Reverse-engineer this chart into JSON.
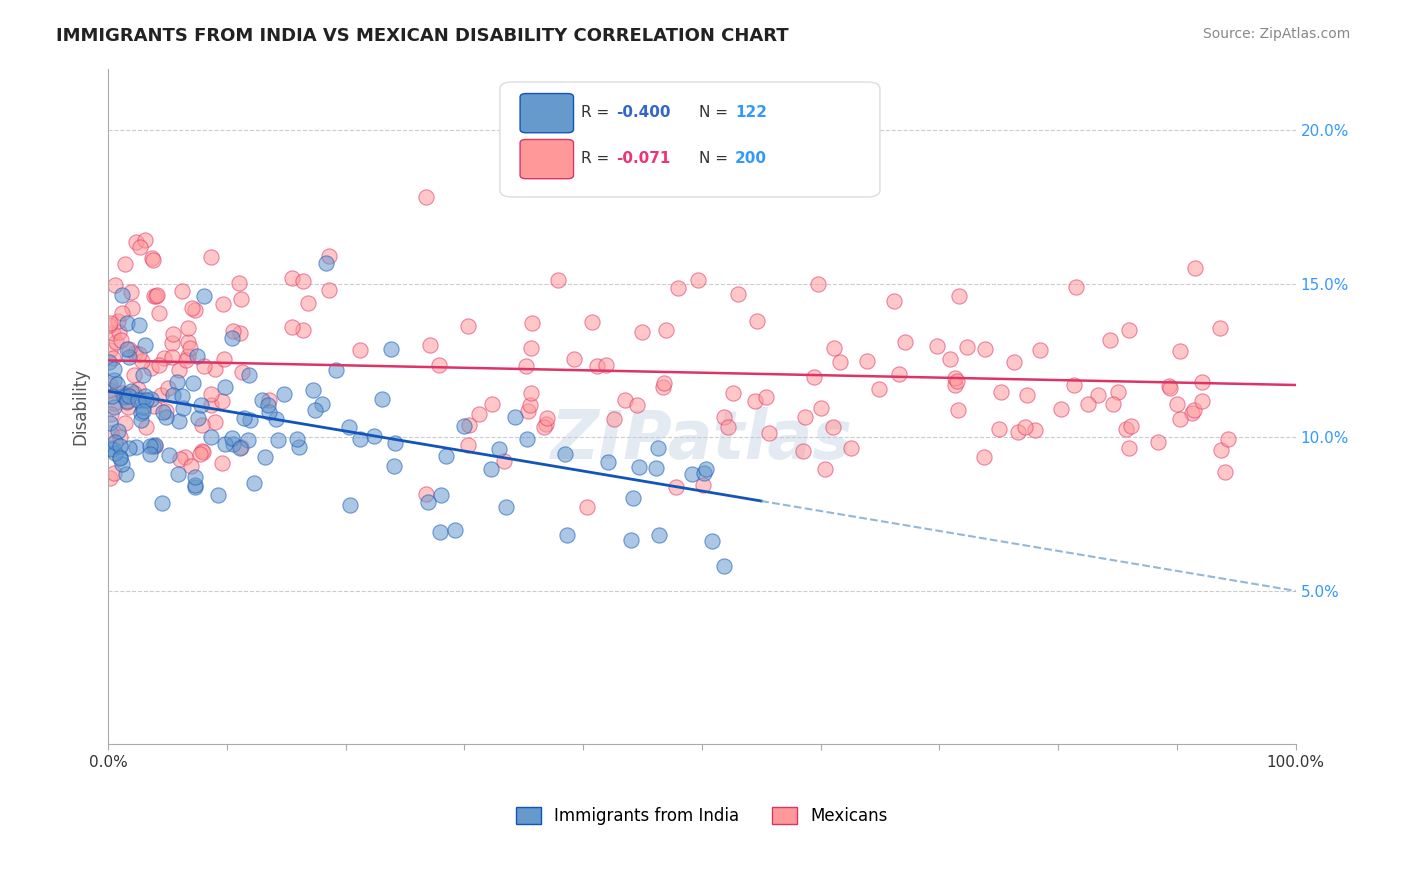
{
  "title": "IMMIGRANTS FROM INDIA VS MEXICAN DISABILITY CORRELATION CHART",
  "source_text": "Source: ZipAtlas.com",
  "ylabel": "Disability",
  "xlim": [
    0,
    100
  ],
  "ylim": [
    0,
    22
  ],
  "yticks": [
    5,
    10,
    15,
    20
  ],
  "ytick_labels": [
    "5.0%",
    "10.0%",
    "15.0%",
    "20.0%"
  ],
  "xticks": [
    0,
    10,
    20,
    30,
    40,
    50,
    60,
    70,
    80,
    90,
    100
  ],
  "xtick_labels": [
    "0.0%",
    "",
    "",
    "",
    "",
    "",
    "",
    "",
    "",
    "",
    "100.0%"
  ],
  "india_R": -0.4,
  "india_N": 122,
  "mexico_R": -0.071,
  "mexico_N": 200,
  "india_color": "#6699CC",
  "india_line_color": "#1155BB",
  "mexico_color": "#FF9999",
  "mexico_line_color": "#DD3366",
  "background_color": "#FFFFFF",
  "grid_color": "#CCCCCC",
  "watermark_text": "ZIPatlas",
  "watermark_color": "#BBCCDD",
  "legend_R_color_india": "#3366CC",
  "legend_R_color_mexico": "#EE3377",
  "legend_N_color": "#3399FF"
}
